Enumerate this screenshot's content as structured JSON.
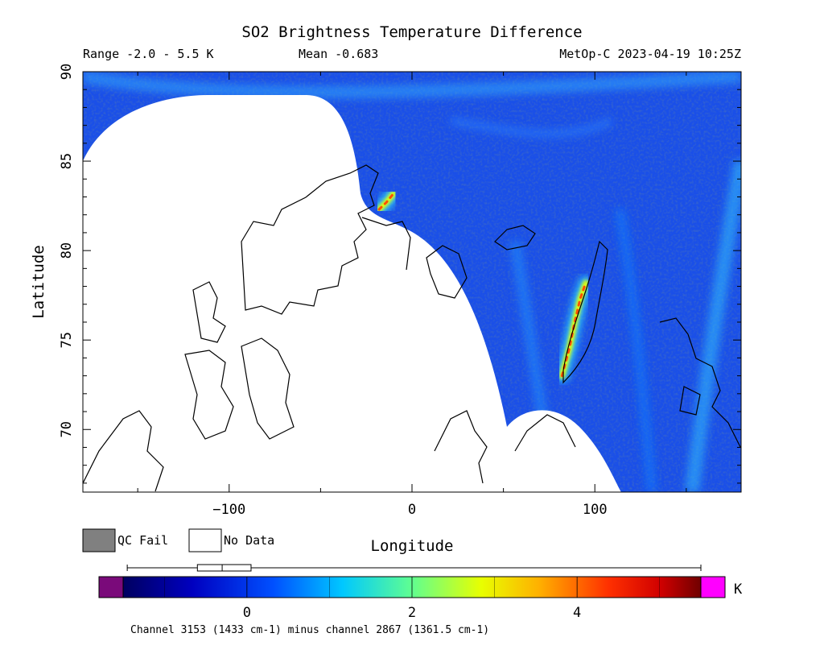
{
  "chart_data": {
    "type": "heatmap",
    "title": "SO2 Brightness Temperature Difference",
    "subtitle_left": "Range -2.0 - 5.5 K",
    "subtitle_center": "Mean -0.683",
    "subtitle_right": "MetOp-C 2023-04-19 10:25Z",
    "xlabel": "Longitude",
    "ylabel": "Latitude",
    "xlim": [
      -180,
      180
    ],
    "ylim": [
      66.5,
      90
    ],
    "xticks": [
      -100,
      0,
      100
    ],
    "yticks": [
      70,
      75,
      80,
      85,
      90
    ],
    "legend": {
      "qc_fail": "QC Fail",
      "no_data": "No Data"
    },
    "colorbar": {
      "unit": "K",
      "min": -1.5,
      "max": 5.5,
      "ticks": [
        0,
        2,
        4
      ],
      "caption": "Channel 3153 (1433 cm-1) minus channel 2867 (1361.5 cm-1)",
      "boxplot": {
        "whisker_low": -1.45,
        "q1": -0.6,
        "median": -0.3,
        "q3": 0.05,
        "whisker_high": 5.5
      }
    },
    "colors": {
      "background_field": "#1a4fe8",
      "no_data": "#ffffff",
      "qc_fail": "#808080",
      "under_range": "#7a0a7a",
      "over_range": "#ff00ff"
    },
    "features": [
      {
        "name": "so2-plume-novaya-zemlya",
        "points": [
          [
            82,
            73
          ],
          [
            86,
            74.5
          ],
          [
            89,
            76
          ],
          [
            92,
            77.3
          ],
          [
            95,
            78.2
          ]
        ],
        "value": 4.2
      },
      {
        "name": "so2-spot-north-greenland",
        "points": [
          [
            -18,
            82.3
          ],
          [
            -14,
            82.7
          ],
          [
            -10,
            83.2
          ]
        ],
        "value": 3.5
      }
    ]
  }
}
